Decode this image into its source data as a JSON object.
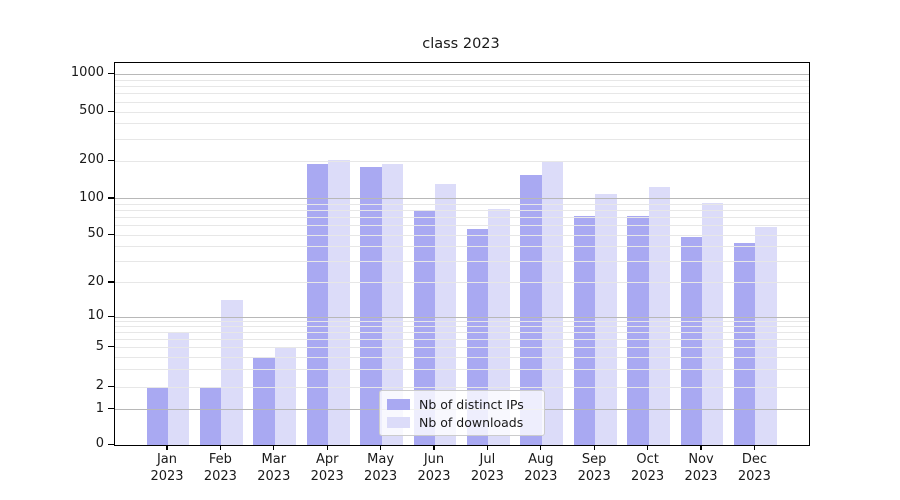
{
  "title": "class 2023",
  "chart_data": {
    "type": "bar",
    "title": "class 2023",
    "categories": [
      "Jan 2023",
      "Feb 2023",
      "Mar 2023",
      "Apr 2023",
      "May 2023",
      "Jun 2023",
      "Jul 2023",
      "Aug 2023",
      "Sep 2023",
      "Oct 2023",
      "Nov 2023",
      "Dec 2023"
    ],
    "series": [
      {
        "name": "Nb of distinct IPs",
        "color": "#a9a9f2",
        "values": [
          2,
          2,
          4,
          190,
          180,
          80,
          56,
          156,
          72,
          72,
          48,
          43
        ]
      },
      {
        "name": "Nb of downloads",
        "color": "#dcdcf9",
        "values": [
          7,
          14,
          5,
          205,
          190,
          130,
          82,
          196,
          110,
          125,
          92,
          58
        ]
      }
    ],
    "yscale": "symlog",
    "yticks": [
      0,
      1,
      2,
      5,
      10,
      20,
      50,
      100,
      200,
      500,
      1000
    ],
    "ylim": [
      0,
      1300
    ],
    "grid": "horizontal major (decades) + minor (log subdivisions)",
    "legend_position": "inside lower-center",
    "grid_major_color": "#b8b8b8",
    "grid_minor_color": "#e7e7e7"
  }
}
